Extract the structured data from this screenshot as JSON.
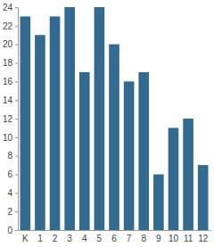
{
  "chart_data": {
    "type": "bar",
    "categories": [
      "K",
      "1",
      "2",
      "3",
      "4",
      "5",
      "6",
      "7",
      "8",
      "9",
      "10",
      "11",
      "12"
    ],
    "values": [
      23,
      21,
      23,
      24,
      17,
      24,
      20,
      16,
      17,
      6,
      11,
      12,
      7
    ],
    "color": "#336a90",
    "ylim": [
      0,
      24
    ],
    "yticks": [
      0,
      2,
      4,
      6,
      8,
      10,
      12,
      14,
      16,
      18,
      20,
      22,
      24
    ],
    "grid": false
  }
}
